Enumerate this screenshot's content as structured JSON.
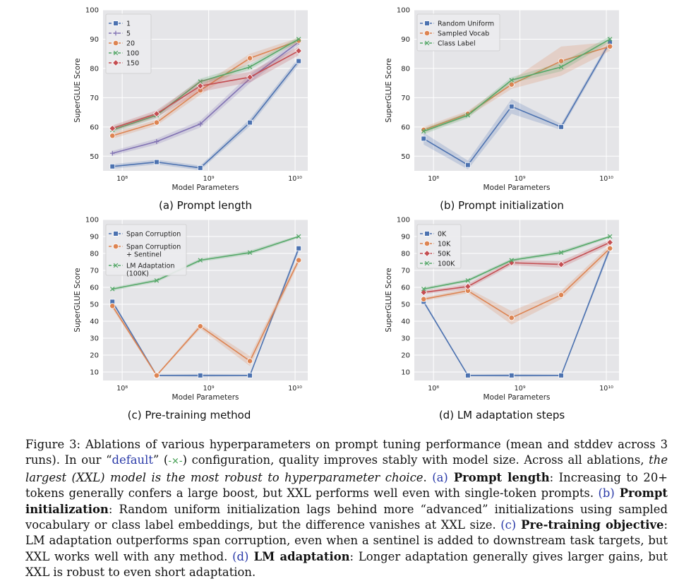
{
  "colors": {
    "blue": "#4c72b0",
    "purple": "#8172b3",
    "orange": "#dd8452",
    "green": "#55a868",
    "red": "#c44e52",
    "panel_bg": "#e5e5e8",
    "grid": "#ffffff",
    "link": "#2a3aa8"
  },
  "chart_data": [
    {
      "type": "line",
      "subcaption": "(a) Prompt length",
      "xlabel": "Model Parameters",
      "ylabel": "SuperGLUE Score",
      "xscale": "log",
      "x": [
        77000000.0,
        250000000.0,
        800000000.0,
        3000000000.0,
        11000000000.0
      ],
      "xticks": [
        {
          "value": 100000000.0,
          "label": "10⁸"
        },
        {
          "value": 1000000000.0,
          "label": "10⁹"
        },
        {
          "value": 10000000000.0,
          "label": "10¹⁰"
        }
      ],
      "ylim": [
        45,
        100
      ],
      "yticks": [
        50,
        60,
        70,
        80,
        90,
        100
      ],
      "legend_position": "upper-left",
      "series": [
        {
          "name": "1",
          "color": "#4c72b0",
          "marker": "square",
          "values": [
            46.5,
            48.0,
            46.0,
            61.5,
            82.5
          ],
          "std": [
            0.8,
            0.8,
            0.8,
            1.2,
            1.2
          ]
        },
        {
          "name": "5",
          "color": "#8172b3",
          "marker": "plus",
          "values": [
            51.0,
            55.0,
            61.0,
            76.5,
            89.0
          ],
          "std": [
            0.8,
            1.0,
            1.2,
            1.5,
            1.0
          ]
        },
        {
          "name": "20",
          "color": "#dd8452",
          "marker": "circle",
          "values": [
            57.0,
            61.5,
            72.5,
            83.5,
            89.5
          ],
          "std": [
            1.0,
            1.0,
            1.5,
            1.5,
            1.0
          ]
        },
        {
          "name": "100",
          "color": "#55a868",
          "marker": "x",
          "values": [
            59.0,
            64.0,
            75.5,
            80.5,
            90.0
          ],
          "std": [
            1.0,
            1.0,
            1.0,
            1.0,
            0.8
          ]
        },
        {
          "name": "150",
          "color": "#c44e52",
          "marker": "diamond",
          "values": [
            59.5,
            64.5,
            74.0,
            77.0,
            86.0
          ],
          "std": [
            1.0,
            1.2,
            2.0,
            1.8,
            1.5
          ]
        }
      ]
    },
    {
      "type": "line",
      "subcaption": "(b) Prompt initialization",
      "xlabel": "Model Parameters",
      "ylabel": "SuperGLUE Score",
      "xscale": "log",
      "x": [
        77000000.0,
        250000000.0,
        800000000.0,
        3000000000.0,
        11000000000.0
      ],
      "xticks": [
        {
          "value": 100000000.0,
          "label": "10⁸"
        },
        {
          "value": 1000000000.0,
          "label": "10⁹"
        },
        {
          "value": 10000000000.0,
          "label": "10¹⁰"
        }
      ],
      "ylim": [
        45,
        100
      ],
      "yticks": [
        50,
        60,
        70,
        80,
        90,
        100
      ],
      "legend_position": "upper-left",
      "series": [
        {
          "name": "Random Uniform",
          "color": "#4c72b0",
          "marker": "square",
          "values": [
            56.0,
            47.0,
            67.0,
            60.0,
            89.0
          ],
          "std": [
            2.0,
            1.5,
            2.5,
            1.0,
            1.0
          ]
        },
        {
          "name": "Sampled Vocab",
          "color": "#dd8452",
          "marker": "circle",
          "values": [
            59.0,
            64.5,
            74.5,
            82.5,
            87.5
          ],
          "std": [
            1.0,
            1.0,
            1.5,
            5.0,
            1.5
          ]
        },
        {
          "name": "Class Label",
          "color": "#55a868",
          "marker": "x",
          "values": [
            58.5,
            64.0,
            76.0,
            80.5,
            90.0
          ],
          "std": [
            1.0,
            1.0,
            1.0,
            1.5,
            1.0
          ]
        }
      ]
    },
    {
      "type": "line",
      "subcaption": "(c) Pre-training method",
      "xlabel": "Model Parameters",
      "ylabel": "SuperGLUE Score",
      "xscale": "log",
      "x": [
        77000000.0,
        250000000.0,
        800000000.0,
        3000000000.0,
        11000000000.0
      ],
      "xticks": [
        {
          "value": 100000000.0,
          "label": "10⁸"
        },
        {
          "value": 1000000000.0,
          "label": "10⁹"
        },
        {
          "value": 10000000000.0,
          "label": "10¹⁰"
        }
      ],
      "ylim": [
        5,
        100
      ],
      "yticks": [
        10,
        20,
        30,
        40,
        50,
        60,
        70,
        80,
        90,
        100
      ],
      "legend_position": "upper-left",
      "series": [
        {
          "name": "Span Corruption",
          "color": "#4c72b0",
          "marker": "square",
          "values": [
            51.5,
            8.0,
            8.0,
            8.0,
            83.0
          ],
          "std": [
            1.0,
            0.5,
            0.8,
            0.5,
            2.0
          ]
        },
        {
          "name": "Span Corruption\n+ Sentinel",
          "color": "#dd8452",
          "marker": "circle",
          "values": [
            49.0,
            8.0,
            37.0,
            16.5,
            76.0
          ],
          "std": [
            1.5,
            0.5,
            1.5,
            3.0,
            2.0
          ]
        },
        {
          "name": "LM Adaptation\n(100K)",
          "color": "#55a868",
          "marker": "x",
          "values": [
            59.0,
            64.0,
            76.0,
            80.5,
            90.0
          ],
          "std": [
            1.0,
            1.0,
            1.0,
            1.2,
            0.8
          ]
        }
      ]
    },
    {
      "type": "line",
      "subcaption": "(d) LM adaptation steps",
      "xlabel": "Model Parameters",
      "ylabel": "SuperGLUE Score",
      "xscale": "log",
      "x": [
        77000000.0,
        250000000.0,
        800000000.0,
        3000000000.0,
        11000000000.0
      ],
      "xticks": [
        {
          "value": 100000000.0,
          "label": "10⁸"
        },
        {
          "value": 1000000000.0,
          "label": "10⁹"
        },
        {
          "value": 10000000000.0,
          "label": "10¹⁰"
        }
      ],
      "ylim": [
        5,
        100
      ],
      "yticks": [
        10,
        20,
        30,
        40,
        50,
        60,
        70,
        80,
        90,
        100
      ],
      "legend_position": "upper-left",
      "series": [
        {
          "name": "0K",
          "color": "#4c72b0",
          "marker": "square",
          "values": [
            51.5,
            8.0,
            8.0,
            8.0,
            83.0
          ],
          "std": [
            1.0,
            0.5,
            0.8,
            0.5,
            2.0
          ]
        },
        {
          "name": "10K",
          "color": "#dd8452",
          "marker": "circle",
          "values": [
            53.0,
            58.0,
            42.0,
            55.5,
            83.0
          ],
          "std": [
            1.0,
            1.5,
            4.0,
            2.5,
            2.0
          ]
        },
        {
          "name": "50K",
          "color": "#c44e52",
          "marker": "diamond",
          "values": [
            57.0,
            60.5,
            74.5,
            73.5,
            86.5
          ],
          "std": [
            1.0,
            1.5,
            1.5,
            2.0,
            1.5
          ]
        },
        {
          "name": "100K",
          "color": "#55a868",
          "marker": "x",
          "values": [
            59.0,
            64.0,
            76.0,
            80.5,
            90.0
          ],
          "std": [
            1.0,
            1.0,
            1.0,
            1.2,
            0.8
          ]
        }
      ]
    }
  ],
  "caption": {
    "figure_label": "Figure 3:",
    "text_1": " Ablations of various hyperparameters on prompt tuning performance (mean and stddev across 3 runs). In our “",
    "default_link": "default",
    "text_2": "” (",
    "default_marker": "-×-",
    "text_3": ") configuration, quality improves stably with model size. Across all ablations, ",
    "italic_1": "the largest (XXL) model is the most robust to hyperparameter choice",
    "text_4": ". ",
    "ref_a": "(a)",
    "bold_a": " Prompt length",
    "text_a": ": Increasing to 20+ tokens generally confers a large boost, but XXL performs well even with single-token prompts. ",
    "ref_b": "(b)",
    "bold_b": " Prompt initialization",
    "text_b": ": Random uniform initialization lags behind more “advanced” initializations using sampled vocabulary or class label embeddings, but the difference vanishes at XXL size. ",
    "ref_c": "(c)",
    "bold_c": " Pre-training objective",
    "text_c": ": LM adaptation outperforms span corruption, even when a sentinel is added to downstream task targets, but XXL works well with any method. ",
    "ref_d": "(d)",
    "bold_d": " LM adaptation",
    "text_d": ": Longer adaptation generally gives larger gains, but XXL is robust to even short adaptation."
  }
}
